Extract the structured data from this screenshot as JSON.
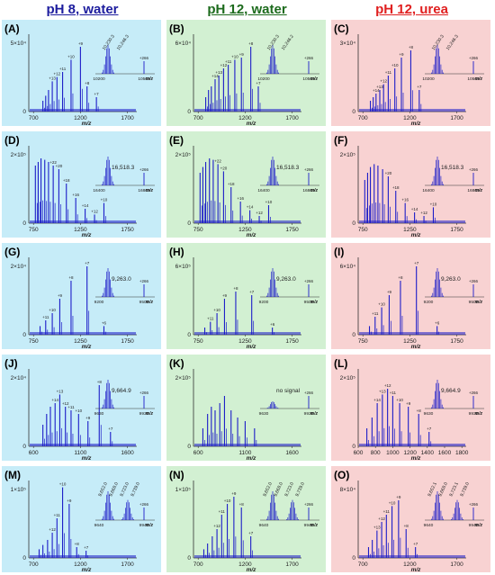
{
  "columns": [
    {
      "label": "pH 8, water",
      "color": "#1d1d9e"
    },
    {
      "label": "pH 12, water",
      "color": "#1d6b1d"
    },
    {
      "label": "pH 12, urea",
      "color": "#e02020"
    }
  ],
  "colors": {
    "blue_bg": "#c6ecf8",
    "green_bg": "#d2f0d2",
    "red_bg": "#f8d2d2",
    "trace": "#1c1cc8"
  },
  "chart_data": [
    {
      "type": "line",
      "label": "(A)",
      "yticks": [
        "0",
        "5×10⁴"
      ],
      "xticks": [
        "700",
        "1200",
        "1700"
      ],
      "xlabel": "m/z",
      "peaks": [
        [
          800,
          0.15
        ],
        [
          830,
          0.22
        ],
        [
          860,
          0.3
        ],
        [
          900,
          0.42
        ],
        [
          950,
          0.48
        ],
        [
          1010,
          0.55
        ],
        [
          1100,
          0.72
        ],
        [
          1200,
          0.9
        ],
        [
          1270,
          0.35
        ],
        [
          1370,
          0.2
        ]
      ],
      "charge_labels": [
        "+13",
        "+12",
        "+11",
        "+10",
        "+9",
        "+8",
        "+7"
      ],
      "inset_labels": [
        "10,230.3",
        "10,246.3",
        "+266"
      ],
      "inset_xticks": [
        "10200",
        "10500"
      ],
      "inset_xlabel": "m/z"
    },
    {
      "type": "line",
      "label": "(B)",
      "yticks": [
        "0",
        "6×10⁴"
      ],
      "xticks": [
        "700",
        "1200",
        "1700"
      ],
      "xlabel": "m/z",
      "peaks": [
        [
          780,
          0.2
        ],
        [
          810,
          0.3
        ],
        [
          840,
          0.35
        ],
        [
          880,
          0.45
        ],
        [
          920,
          0.5
        ],
        [
          970,
          0.6
        ],
        [
          1020,
          0.65
        ],
        [
          1090,
          0.72
        ],
        [
          1160,
          0.75
        ],
        [
          1260,
          0.9
        ],
        [
          1340,
          0.35
        ]
      ],
      "charge_labels": [
        "+14",
        "+13",
        "+12",
        "+11",
        "+10",
        "+9",
        "+8",
        "+7"
      ],
      "inset_labels": [
        "10,230.3",
        "10,246.2",
        "+266"
      ],
      "inset_xticks": [
        "10200",
        "10500"
      ],
      "inset_xlabel": "m/z"
    },
    {
      "type": "line",
      "label": "(C)",
      "yticks": [
        "0",
        "3×10⁴"
      ],
      "xticks": [
        "700",
        "1200",
        "1700"
      ],
      "xlabel": "m/z",
      "peaks": [
        [
          780,
          0.15
        ],
        [
          810,
          0.2
        ],
        [
          840,
          0.25
        ],
        [
          880,
          0.3
        ],
        [
          920,
          0.38
        ],
        [
          970,
          0.5
        ],
        [
          1040,
          0.6
        ],
        [
          1110,
          0.75
        ],
        [
          1210,
          0.85
        ],
        [
          1300,
          0.3
        ]
      ],
      "charge_labels": [
        "+14",
        "+13",
        "+12",
        "+11",
        "+10",
        "+9",
        "+8",
        "+7"
      ],
      "inset_labels": [
        "10,230.3",
        "10,246.3",
        "+266"
      ],
      "inset_xticks": [
        "10200",
        "10500"
      ],
      "inset_xlabel": "m/z"
    },
    {
      "type": "line",
      "label": "(D)",
      "yticks": [
        "0",
        "2×10⁵"
      ],
      "xticks": [
        "750",
        "1250",
        "1750"
      ],
      "xlabel": "m/z",
      "peaks": [
        [
          770,
          0.8
        ],
        [
          800,
          0.85
        ],
        [
          830,
          0.9
        ],
        [
          870,
          0.88
        ],
        [
          910,
          0.85
        ],
        [
          960,
          0.8
        ],
        [
          1020,
          0.75
        ],
        [
          1100,
          0.55
        ],
        [
          1200,
          0.35
        ],
        [
          1300,
          0.2
        ],
        [
          1400,
          0.12
        ],
        [
          1500,
          0.28
        ]
      ],
      "charge_labels": [
        "+22",
        "+20",
        "+18",
        "+16",
        "+14",
        "+12",
        "+10"
      ],
      "inset_labels": [
        "16,518.3",
        "+266"
      ],
      "inset_xticks": [
        "16400",
        "16800"
      ],
      "inset_xlabel": "m/z"
    },
    {
      "type": "line",
      "label": "(E)",
      "yticks": [
        "0",
        "2×10⁵"
      ],
      "xticks": [
        "750",
        "1250",
        "1750"
      ],
      "xlabel": "m/z",
      "peaks": [
        [
          770,
          0.7
        ],
        [
          800,
          0.78
        ],
        [
          830,
          0.85
        ],
        [
          870,
          0.9
        ],
        [
          910,
          0.88
        ],
        [
          960,
          0.82
        ],
        [
          1020,
          0.72
        ],
        [
          1100,
          0.5
        ],
        [
          1200,
          0.3
        ],
        [
          1300,
          0.18
        ],
        [
          1400,
          0.1
        ],
        [
          1500,
          0.25
        ]
      ],
      "charge_labels": [
        "+22",
        "+20",
        "+18",
        "+16",
        "+14",
        "+12",
        "+10"
      ],
      "inset_labels": [
        "16,518.3",
        "+266"
      ],
      "inset_xticks": [
        "16400",
        "16800"
      ],
      "inset_xlabel": "m/z"
    },
    {
      "type": "line",
      "label": "(F)",
      "yticks": [
        "0",
        "2×10⁵"
      ],
      "xticks": [
        "750",
        "1250",
        "1750"
      ],
      "xlabel": "m/z",
      "peaks": [
        [
          770,
          0.6
        ],
        [
          800,
          0.7
        ],
        [
          830,
          0.78
        ],
        [
          870,
          0.82
        ],
        [
          910,
          0.8
        ],
        [
          960,
          0.75
        ],
        [
          1020,
          0.65
        ],
        [
          1100,
          0.45
        ],
        [
          1200,
          0.28
        ],
        [
          1300,
          0.15
        ],
        [
          1400,
          0.1
        ],
        [
          1500,
          0.22
        ]
      ],
      "charge_labels": [
        "+20",
        "+18",
        "+16",
        "+14",
        "+12",
        "+10"
      ],
      "inset_labels": [
        "16,518.3",
        "+266"
      ],
      "inset_xticks": [
        "16400",
        "16800"
      ],
      "inset_xlabel": "m/z"
    },
    {
      "type": "line",
      "label": "(G)",
      "yticks": [
        "0",
        "2×10⁴"
      ],
      "xticks": [
        "750",
        "1250",
        "1750"
      ],
      "xlabel": "m/z",
      "peaks": [
        [
          820,
          0.12
        ],
        [
          880,
          0.2
        ],
        [
          950,
          0.3
        ],
        [
          1030,
          0.5
        ],
        [
          1150,
          0.75
        ],
        [
          1320,
          0.95
        ],
        [
          1500,
          0.12
        ]
      ],
      "charge_labels": [
        "+11",
        "+10",
        "+9",
        "+8",
        "+7",
        "+6"
      ],
      "inset_labels": [
        "9,263.0",
        "+266"
      ],
      "inset_xticks": [
        "9200",
        "9500"
      ],
      "inset_xlabel": "m/z"
    },
    {
      "type": "line",
      "label": "(H)",
      "yticks": [
        "0",
        "6×10⁵"
      ],
      "xticks": [
        "750",
        "1250",
        "1750"
      ],
      "xlabel": "m/z",
      "peaks": [
        [
          820,
          0.1
        ],
        [
          880,
          0.18
        ],
        [
          950,
          0.3
        ],
        [
          1030,
          0.5
        ],
        [
          1150,
          0.6
        ],
        [
          1320,
          0.55
        ],
        [
          1540,
          0.1
        ]
      ],
      "charge_labels": [
        "+11",
        "+10",
        "+9",
        "+8",
        "+7",
        "+6"
      ],
      "inset_labels": [
        "9,263.0",
        "+266"
      ],
      "inset_xticks": [
        "9200",
        "9500"
      ],
      "inset_xlabel": "m/z"
    },
    {
      "type": "line",
      "label": "(I)",
      "yticks": [
        "0",
        "6×10⁴"
      ],
      "xticks": [
        "750",
        "1250",
        "1750"
      ],
      "xlabel": "m/z",
      "peaks": [
        [
          820,
          0.12
        ],
        [
          880,
          0.25
        ],
        [
          950,
          0.38
        ],
        [
          1030,
          0.55
        ],
        [
          1150,
          0.75
        ],
        [
          1320,
          0.95
        ],
        [
          1540,
          0.12
        ]
      ],
      "charge_labels": [
        "+11",
        "+10",
        "+9",
        "+8",
        "+7",
        "+6"
      ],
      "inset_labels": [
        "9,263.0",
        "+266"
      ],
      "inset_xticks": [
        "9200",
        "9500"
      ],
      "inset_xlabel": "m/z"
    },
    {
      "type": "line",
      "label": "(J)",
      "yticks": [
        "0",
        "2×10⁴"
      ],
      "xticks": [
        "600",
        "1100",
        "1600"
      ],
      "xlabel": "m/z",
      "peaks": [
        [
          700,
          0.3
        ],
        [
          740,
          0.45
        ],
        [
          780,
          0.55
        ],
        [
          830,
          0.6
        ],
        [
          880,
          0.72
        ],
        [
          940,
          0.55
        ],
        [
          1000,
          0.5
        ],
        [
          1080,
          0.45
        ],
        [
          1180,
          0.35
        ],
        [
          1300,
          0.85
        ],
        [
          1420,
          0.2
        ]
      ],
      "charge_labels": [
        "+14",
        "+13",
        "+12",
        "+11",
        "+10",
        "+9",
        "+8",
        "+7"
      ],
      "inset_labels": [
        "9,664.9",
        "+266"
      ],
      "inset_xticks": [
        "9630",
        "9930"
      ],
      "inset_xlabel": "m/z"
    },
    {
      "type": "line",
      "label": "(K)",
      "yticks": [
        "0",
        "2×10⁵"
      ],
      "xticks": [
        "600",
        "1100",
        "1600"
      ],
      "xlabel": "m/z",
      "peaks": [
        [
          650,
          0.25
        ],
        [
          700,
          0.45
        ],
        [
          740,
          0.55
        ],
        [
          780,
          0.5
        ],
        [
          830,
          0.6
        ],
        [
          880,
          0.7
        ],
        [
          950,
          0.5
        ],
        [
          1020,
          0.4
        ],
        [
          1100,
          0.35
        ],
        [
          1200,
          0.25
        ]
      ],
      "charge_labels": [],
      "inset_labels": [
        "no signal",
        "+266"
      ],
      "inset_xticks": [
        "9630",
        "9930"
      ],
      "inset_xlabel": "m/z"
    },
    {
      "type": "line",
      "label": "(L)",
      "yticks": [
        "0",
        "2×10⁵"
      ],
      "xticks": [
        "600",
        "800",
        "1000",
        "1200",
        "1400",
        "1600",
        "1800"
      ],
      "xlabel": "m/z",
      "peaks": [
        [
          700,
          0.25
        ],
        [
          760,
          0.4
        ],
        [
          820,
          0.6
        ],
        [
          880,
          0.72
        ],
        [
          940,
          0.8
        ],
        [
          1000,
          0.7
        ],
        [
          1080,
          0.6
        ],
        [
          1180,
          0.55
        ],
        [
          1300,
          0.45
        ],
        [
          1420,
          0.2
        ]
      ],
      "charge_labels": [
        "+14",
        "+13",
        "+12",
        "+11",
        "+10",
        "+9",
        "+8",
        "+7"
      ],
      "inset_labels": [
        "9,664.9",
        "+266"
      ],
      "inset_xticks": [
        "9630",
        "9930"
      ],
      "inset_xlabel": "m/z"
    },
    {
      "type": "line",
      "label": "(M)",
      "yticks": [
        "0",
        "1×10⁵"
      ],
      "xticks": [
        "700",
        "1200",
        "1700"
      ],
      "xlabel": "m/z",
      "peaks": [
        [
          760,
          0.12
        ],
        [
          800,
          0.18
        ],
        [
          850,
          0.25
        ],
        [
          900,
          0.35
        ],
        [
          950,
          0.55
        ],
        [
          1010,
          0.98
        ],
        [
          1080,
          0.75
        ],
        [
          1160,
          0.15
        ],
        [
          1260,
          0.1
        ]
      ],
      "charge_labels": [
        "+12",
        "+11",
        "+10",
        "+9",
        "+8",
        "+7"
      ],
      "inset_labels": [
        "9,652.0",
        "9,668.0",
        "9,723.0",
        "9,739.0",
        "+266"
      ],
      "inset_xticks": [
        "9640",
        "9940"
      ],
      "inset_xlabel": "m/z"
    },
    {
      "type": "line",
      "label": "(N)",
      "yticks": [
        "0",
        "1×10⁵"
      ],
      "xticks": [
        "700",
        "1200",
        "1700"
      ],
      "xlabel": "m/z",
      "peaks": [
        [
          760,
          0.12
        ],
        [
          800,
          0.2
        ],
        [
          850,
          0.3
        ],
        [
          900,
          0.4
        ],
        [
          950,
          0.6
        ],
        [
          1010,
          0.75
        ],
        [
          1080,
          0.85
        ],
        [
          1160,
          0.7
        ],
        [
          1260,
          0.3
        ]
      ],
      "charge_labels": [
        "+12",
        "+11",
        "+10",
        "+9",
        "+8",
        "+7"
      ],
      "inset_labels": [
        "9,652.0",
        "9,668.0",
        "9,723.0",
        "9,739.0",
        "+266"
      ],
      "inset_xticks": [
        "9640",
        "9940"
      ],
      "inset_xlabel": "m/z"
    },
    {
      "type": "line",
      "label": "(O)",
      "yticks": [
        "0",
        "8×10⁴"
      ],
      "xticks": [
        "700",
        "1200",
        "1700"
      ],
      "xlabel": "m/z",
      "peaks": [
        [
          760,
          0.15
        ],
        [
          800,
          0.25
        ],
        [
          850,
          0.38
        ],
        [
          900,
          0.5
        ],
        [
          950,
          0.6
        ],
        [
          1010,
          0.72
        ],
        [
          1080,
          0.8
        ],
        [
          1160,
          0.4
        ],
        [
          1260,
          0.15
        ]
      ],
      "charge_labels": [
        "+13",
        "+12",
        "+11",
        "+10",
        "+9",
        "+8",
        "+7"
      ],
      "inset_labels": [
        "9,652.1",
        "9,668.0",
        "9,723.1",
        "9,739.0",
        "+266"
      ],
      "inset_xticks": [
        "9640",
        "9940"
      ],
      "inset_xlabel": "m/z"
    }
  ]
}
